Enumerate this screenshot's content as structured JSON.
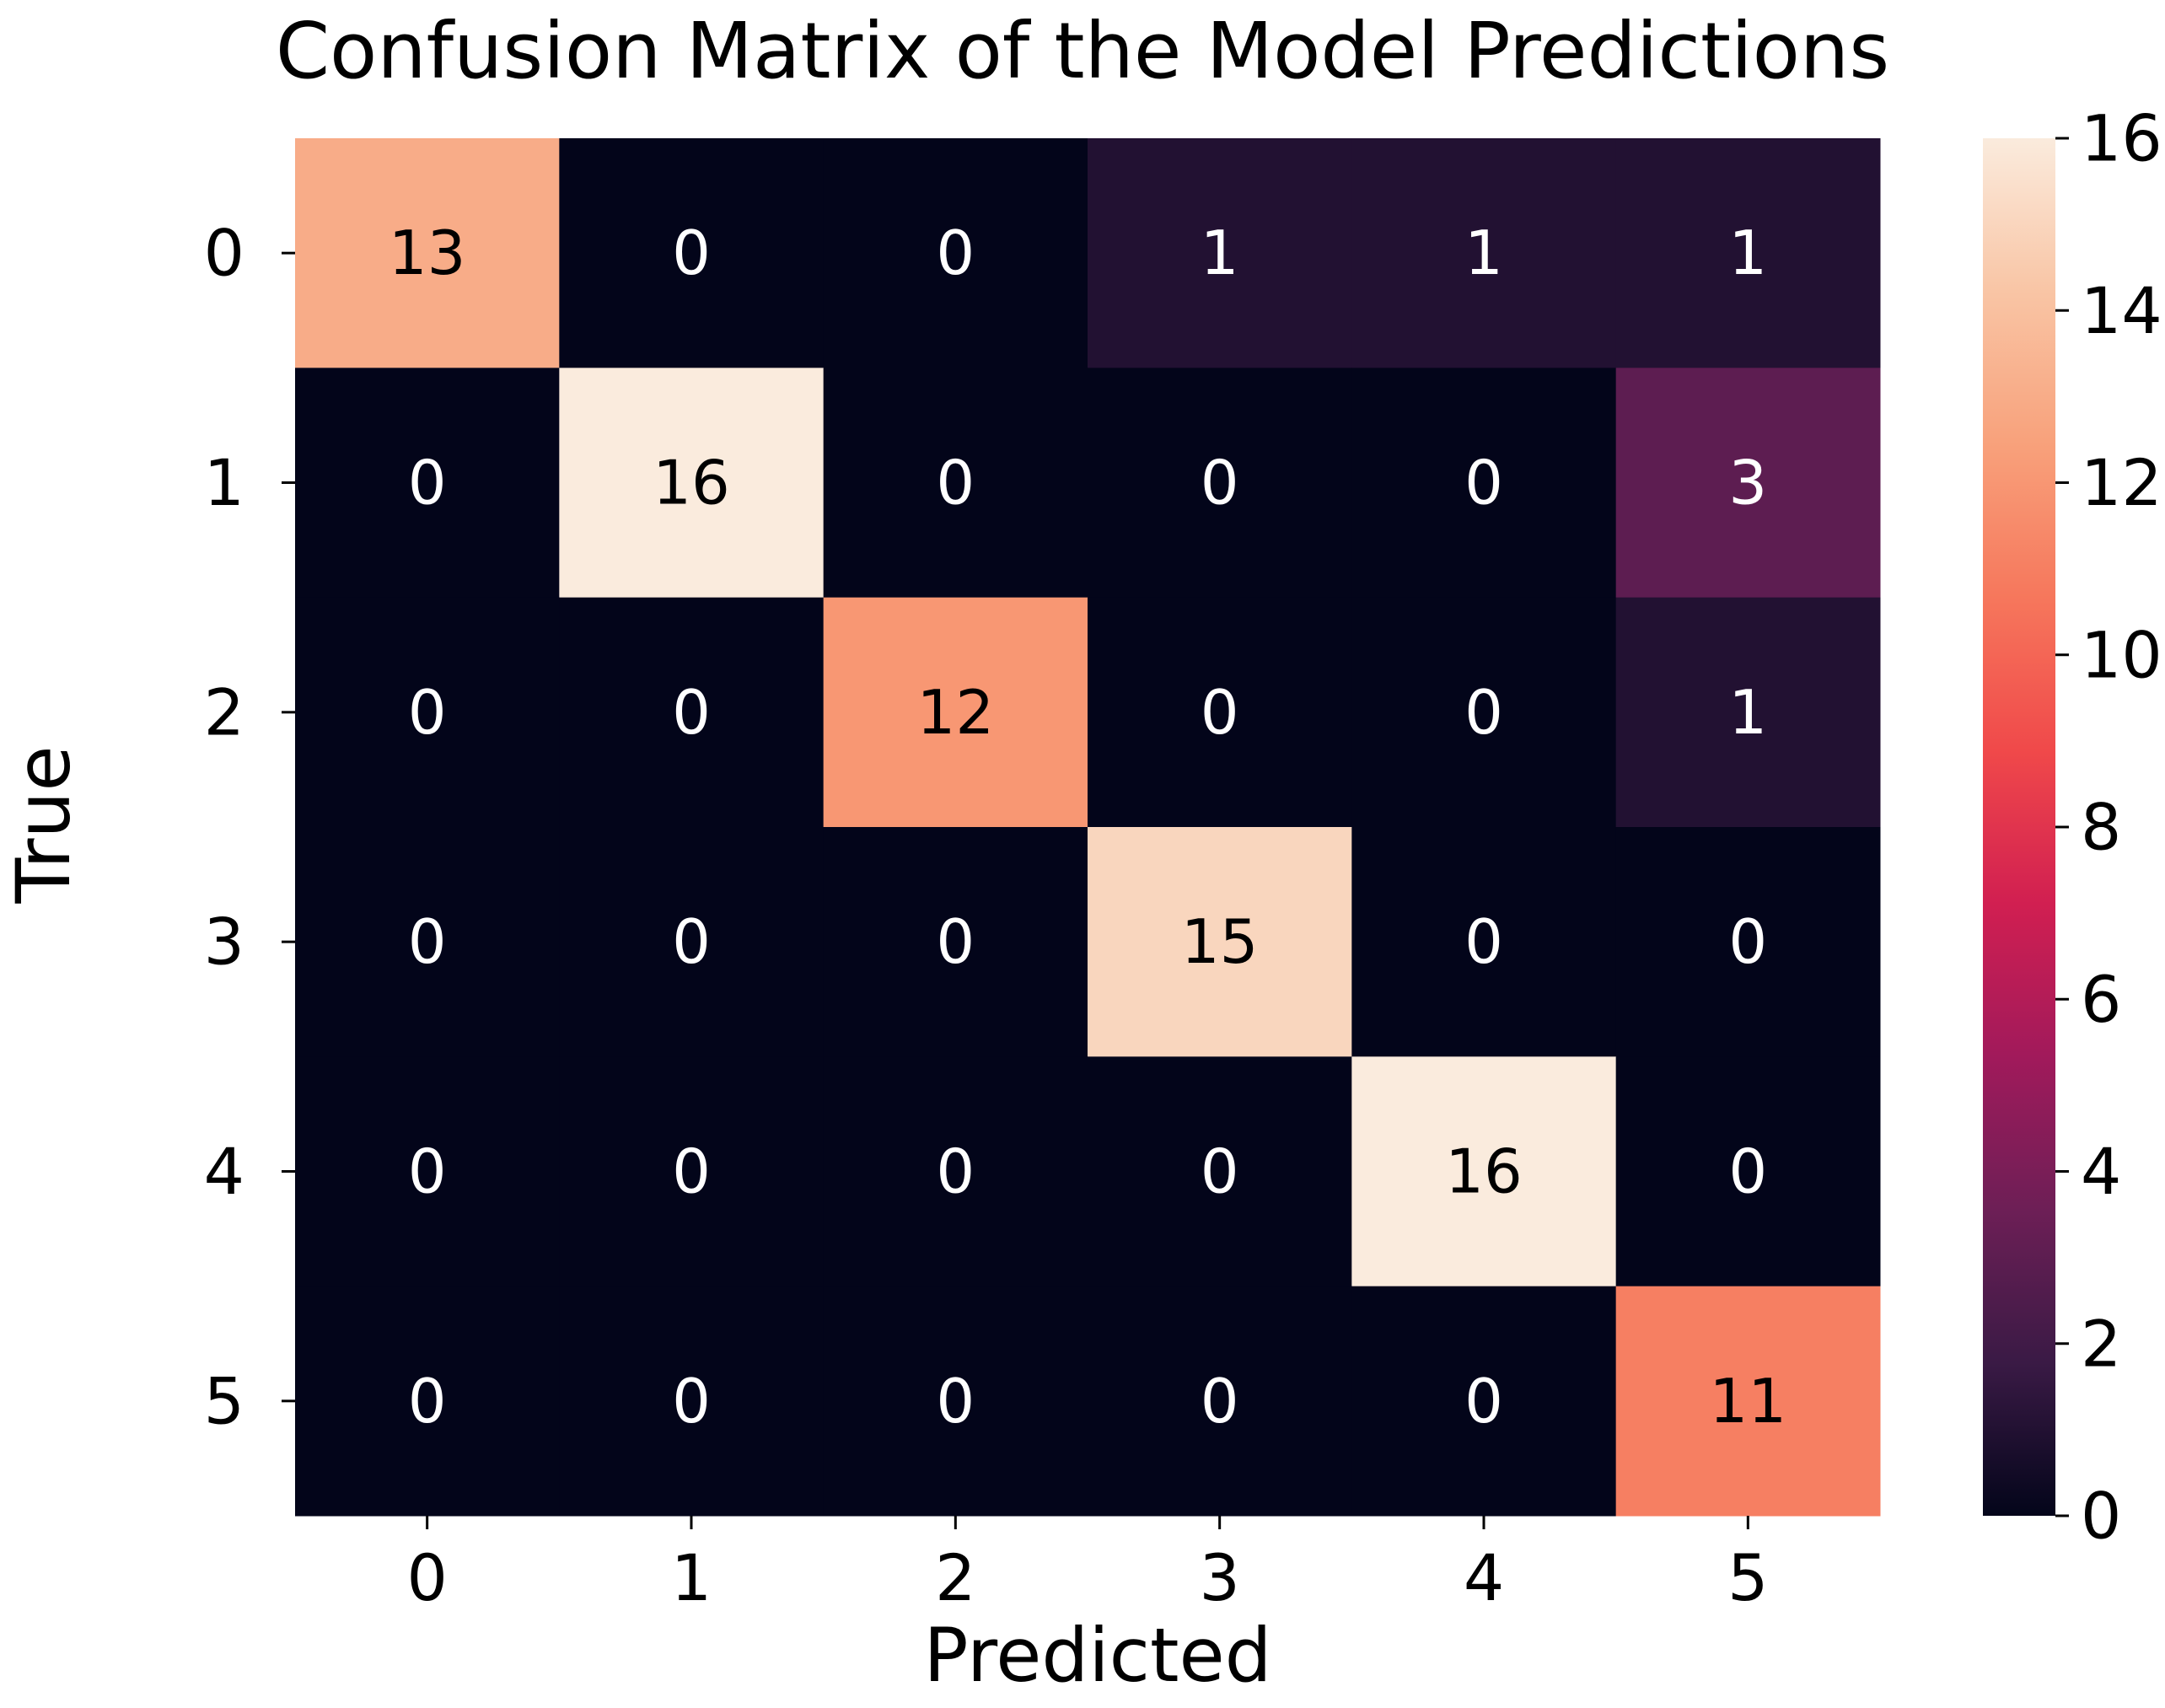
{
  "chart_data": {
    "type": "heatmap",
    "title": "Confusion Matrix of the Model Predictions",
    "xlabel": "Predicted",
    "ylabel": "True",
    "x_categories": [
      "0",
      "1",
      "2",
      "3",
      "4",
      "5"
    ],
    "y_categories": [
      "0",
      "1",
      "2",
      "3",
      "4",
      "5"
    ],
    "values": [
      [
        13,
        0,
        0,
        1,
        1,
        1
      ],
      [
        0,
        16,
        0,
        0,
        0,
        3
      ],
      [
        0,
        0,
        12,
        0,
        0,
        1
      ],
      [
        0,
        0,
        0,
        15,
        0,
        0
      ],
      [
        0,
        0,
        0,
        0,
        16,
        0
      ],
      [
        0,
        0,
        0,
        0,
        0,
        11
      ]
    ],
    "colorbar": {
      "range": [
        0,
        16
      ],
      "ticks": [
        "0",
        "2",
        "4",
        "6",
        "8",
        "10",
        "12",
        "14",
        "16"
      ],
      "colormap": "rocket",
      "colors": [
        "#03051a",
        "#3a1a45",
        "#6d1f56",
        "#a11a5b",
        "#d11f51",
        "#f0494a",
        "#f6775c",
        "#f8a17b",
        "#f9c5a5",
        "#faebdd"
      ]
    },
    "grid": false,
    "legend": "colorbar-right"
  }
}
